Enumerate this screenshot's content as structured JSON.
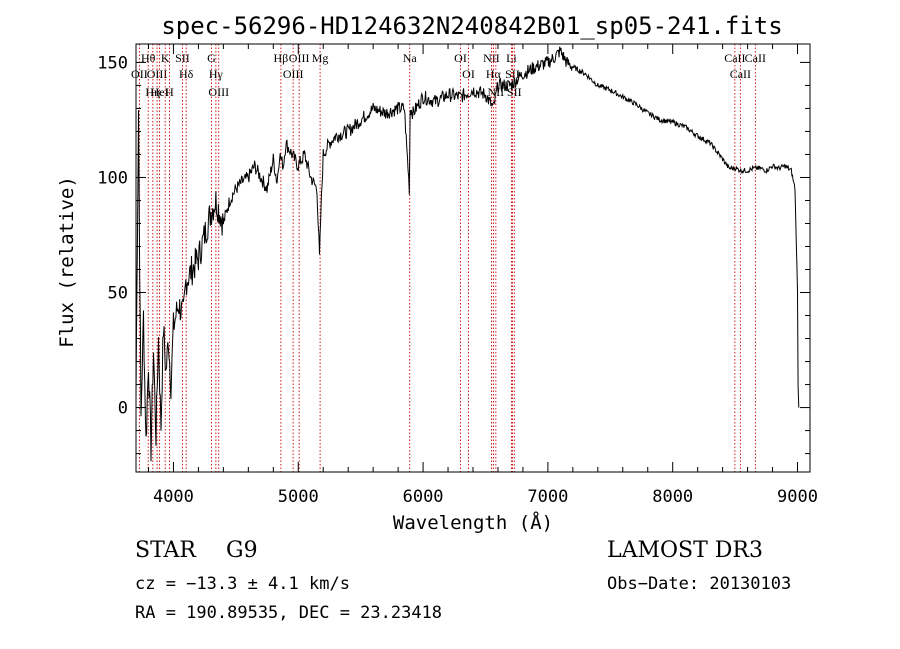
{
  "chart_data": {
    "type": "line",
    "title": "spec-56296-HD124632N240842B01_sp05-241.fits",
    "xlabel": "Wavelength (Å)",
    "ylabel": "Flux (relative)",
    "xlim": [
      3700,
      9100
    ],
    "ylim": [
      -28,
      158
    ],
    "xticks": [
      4000,
      5000,
      6000,
      7000,
      8000,
      9000
    ],
    "xtick_labels": [
      "4000",
      "5000",
      "6000",
      "7000",
      "8000",
      "9000"
    ],
    "yticks": [
      0,
      50,
      100,
      150
    ],
    "ytick_labels": [
      "0",
      "50",
      "100",
      "150"
    ],
    "grid": false,
    "series": [
      {
        "name": "spectrum",
        "x": [
          3700,
          3720,
          3740,
          3760,
          3780,
          3800,
          3820,
          3840,
          3860,
          3880,
          3900,
          3920,
          3940,
          3960,
          3980,
          4000,
          4040,
          4080,
          4100,
          4150,
          4200,
          4250,
          4300,
          4340,
          4400,
          4450,
          4500,
          4550,
          4600,
          4650,
          4700,
          4750,
          4800,
          4830,
          4850,
          4880,
          4900,
          4950,
          5000,
          5050,
          5100,
          5150,
          5170,
          5185,
          5200,
          5250,
          5300,
          5400,
          5500,
          5600,
          5700,
          5800,
          5850,
          5890,
          5893,
          5897,
          5920,
          6000,
          6100,
          6200,
          6300,
          6400,
          6500,
          6563,
          6600,
          6700,
          6800,
          6900,
          7000,
          7050,
          7100,
          7150,
          7200,
          7300,
          7400,
          7500,
          7600,
          7700,
          7800,
          7900,
          8000,
          8100,
          8200,
          8300,
          8400,
          8450,
          8500,
          8550,
          8600,
          8650,
          8700,
          8750,
          8800,
          8850,
          8900,
          8950,
          8980,
          9000,
          9005,
          9010
        ],
        "y": [
          5,
          130,
          -5,
          40,
          -15,
          20,
          -18,
          25,
          -12,
          30,
          -8,
          35,
          15,
          30,
          10,
          35,
          45,
          40,
          55,
          60,
          65,
          75,
          85,
          90,
          80,
          90,
          95,
          98,
          100,
          105,
          100,
          95,
          108,
          98,
          110,
          105,
          115,
          110,
          105,
          110,
          100,
          95,
          65,
          90,
          110,
          115,
          118,
          120,
          125,
          130,
          128,
          130,
          130,
          95,
          110,
          130,
          128,
          135,
          133,
          136,
          135,
          138,
          136,
          130,
          140,
          140,
          145,
          148,
          150,
          152,
          155,
          150,
          148,
          145,
          140,
          138,
          135,
          132,
          128,
          125,
          124,
          122,
          118,
          115,
          108,
          104,
          104,
          103,
          103,
          104,
          104,
          103,
          105,
          104,
          105,
          103,
          95,
          50,
          10,
          0
        ]
      }
    ],
    "lines": [
      {
        "label": "Hθ",
        "x": 3798
      },
      {
        "label": "OII",
        "x": 3727
      },
      {
        "label": "OIII",
        "x": 3869
      },
      {
        "label": "HeI",
        "x": 3889
      },
      {
        "label": "Hη",
        "x": 3835
      },
      {
        "label": "K",
        "x": 3934
      },
      {
        "label": "H",
        "x": 3968
      },
      {
        "label": "SII",
        "x": 4072
      },
      {
        "label": "Hδ",
        "x": 4102
      },
      {
        "label": "G",
        "x": 4305
      },
      {
        "label": "Hγ",
        "x": 4340
      },
      {
        "label": "OIII",
        "x": 4363
      },
      {
        "label": "Hβ",
        "x": 4861
      },
      {
        "label": "OIII",
        "x": 4959
      },
      {
        "label": "OIII",
        "x": 5007
      },
      {
        "label": "Mg",
        "x": 5175
      },
      {
        "label": "Na",
        "x": 5893
      },
      {
        "label": "OI",
        "x": 6300
      },
      {
        "label": "OI",
        "x": 6364
      },
      {
        "label": "NII",
        "x": 6548
      },
      {
        "label": "Hα",
        "x": 6563
      },
      {
        "label": "NII",
        "x": 6583
      },
      {
        "label": "Li",
        "x": 6708
      },
      {
        "label": "SII",
        "x": 6716
      },
      {
        "label": "SII",
        "x": 6731
      },
      {
        "label": "CaII",
        "x": 8498
      },
      {
        "label": "CaII",
        "x": 8542
      },
      {
        "label": "CaII",
        "x": 8662
      }
    ]
  },
  "info": {
    "class": "STAR",
    "subclass": "G9",
    "survey": "LAMOST DR3",
    "cz": "cz = −13.3 ± 4.1 km/s",
    "obs_date": "Obs−Date: 20130103",
    "coords": "RA = 190.89535, DEC =  23.23418"
  },
  "colors": {
    "line_marker": "#cc0000",
    "spectrum": "#000000"
  }
}
